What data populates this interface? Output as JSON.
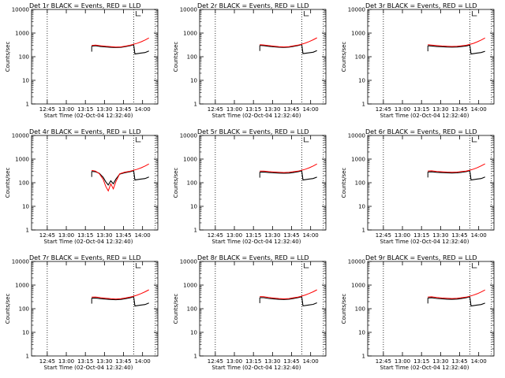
{
  "colors": {
    "events": "#000000",
    "lld": "#ff0000",
    "axes": "#000000",
    "background": "#ffffff"
  },
  "chart_data": [
    {
      "type": "line",
      "title": "Det 1r BLACK = Events, RED = LLD",
      "xlabel": "Start Time (02-Oct-04 12:32:40)",
      "ylabel": "Counts/sec",
      "yscale": "log",
      "ylim": [
        1,
        10000
      ],
      "xlim": [
        "12:32:40",
        "14:12:00"
      ],
      "xticks": [
        "12:45",
        "13:00",
        "13:15",
        "13:30",
        "13:45",
        "14:00"
      ],
      "yticks": [
        "1",
        "10",
        "100",
        "1000",
        "10000"
      ],
      "vlines": [
        "12:45",
        "13:53",
        "14:10"
      ],
      "bracket_label": "L",
      "series": [
        {
          "name": "Events",
          "color": "#000000",
          "x": [
            "13:20",
            "13:23",
            "13:27",
            "13:31",
            "13:35",
            "13:39",
            "13:43",
            "13:46",
            "13:50",
            "13:53",
            "13:54",
            "13:58",
            "14:02",
            "14:05"
          ],
          "values": [
            280,
            290,
            270,
            260,
            250,
            245,
            250,
            265,
            290,
            320,
            130,
            140,
            150,
            175
          ]
        },
        {
          "name": "LLD",
          "color": "#ff0000",
          "x": [
            "13:20",
            "13:23",
            "13:27",
            "13:31",
            "13:35",
            "13:39",
            "13:43",
            "13:46",
            "13:50",
            "13:53",
            "13:56",
            "13:59",
            "14:02",
            "14:05"
          ],
          "values": [
            300,
            310,
            290,
            275,
            265,
            255,
            262,
            278,
            305,
            335,
            375,
            430,
            510,
            620
          ]
        }
      ]
    },
    {
      "type": "line",
      "title": "Det 2r BLACK = Events, RED = LLD",
      "xlabel": "Start Time (02-Oct-04 12:32:40)",
      "ylabel": "Counts/sec",
      "yscale": "log",
      "ylim": [
        1,
        10000
      ],
      "xlim": [
        "12:32:40",
        "14:12:00"
      ],
      "xticks": [
        "12:45",
        "13:00",
        "13:15",
        "13:30",
        "13:45",
        "14:00"
      ],
      "yticks": [
        "1",
        "10",
        "100",
        "1000",
        "10000"
      ],
      "vlines": [
        "12:45",
        "13:53",
        "14:10"
      ],
      "bracket_label": "L",
      "series": [
        {
          "name": "Events",
          "color": "#000000",
          "x": [
            "13:20",
            "13:23",
            "13:27",
            "13:31",
            "13:35",
            "13:39",
            "13:43",
            "13:46",
            "13:50",
            "13:53",
            "13:54",
            "13:58",
            "14:02",
            "14:05"
          ],
          "values": [
            300,
            295,
            275,
            262,
            252,
            248,
            255,
            270,
            295,
            325,
            135,
            145,
            155,
            180
          ]
        },
        {
          "name": "LLD",
          "color": "#ff0000",
          "x": [
            "13:20",
            "13:23",
            "13:27",
            "13:31",
            "13:35",
            "13:39",
            "13:43",
            "13:46",
            "13:50",
            "13:53",
            "13:56",
            "13:59",
            "14:02",
            "14:05"
          ],
          "values": [
            320,
            315,
            295,
            280,
            268,
            260,
            268,
            285,
            310,
            340,
            380,
            440,
            520,
            630
          ]
        }
      ]
    },
    {
      "type": "line",
      "title": "Det 3r BLACK = Events, RED = LLD",
      "xlabel": "Start Time (02-Oct-04 12:32:40)",
      "ylabel": "Counts/sec",
      "yscale": "log",
      "ylim": [
        1,
        10000
      ],
      "xlim": [
        "12:32:40",
        "14:12:00"
      ],
      "xticks": [
        "12:45",
        "13:00",
        "13:15",
        "13:30",
        "13:45",
        "14:00"
      ],
      "yticks": [
        "1",
        "10",
        "100",
        "1000",
        "10000"
      ],
      "vlines": [
        "12:45",
        "13:53",
        "14:10"
      ],
      "bracket_label": "L",
      "series": [
        {
          "name": "Events",
          "color": "#000000",
          "x": [
            "13:20",
            "13:23",
            "13:27",
            "13:31",
            "13:35",
            "13:39",
            "13:43",
            "13:46",
            "13:50",
            "13:53",
            "13:54",
            "13:58",
            "14:02",
            "14:05"
          ],
          "values": [
            290,
            285,
            270,
            265,
            258,
            255,
            258,
            268,
            285,
            310,
            130,
            140,
            150,
            170
          ]
        },
        {
          "name": "LLD",
          "color": "#ff0000",
          "x": [
            "13:20",
            "13:23",
            "13:27",
            "13:31",
            "13:35",
            "13:39",
            "13:43",
            "13:46",
            "13:50",
            "13:53",
            "13:56",
            "13:59",
            "14:02",
            "14:05"
          ],
          "values": [
            320,
            310,
            295,
            285,
            278,
            272,
            276,
            288,
            305,
            330,
            370,
            430,
            510,
            620
          ]
        }
      ]
    },
    {
      "type": "line",
      "title": "Det 4r BLACK = Events, RED = LLD",
      "xlabel": "Start Time (02-Oct-04 12:32:40)",
      "ylabel": "Counts/sec",
      "yscale": "log",
      "ylim": [
        1,
        10000
      ],
      "xlim": [
        "12:32:40",
        "14:12:00"
      ],
      "xticks": [
        "12:45",
        "13:00",
        "13:15",
        "13:30",
        "13:45",
        "14:00"
      ],
      "yticks": [
        "1",
        "10",
        "100",
        "1000",
        "10000"
      ],
      "vlines": [
        "12:45",
        "13:53",
        "14:10"
      ],
      "bracket_label": "L",
      "series": [
        {
          "name": "Events",
          "color": "#000000",
          "x": [
            "13:20",
            "13:23",
            "13:26",
            "13:29",
            "13:31",
            "13:33",
            "13:35",
            "13:37",
            "13:39",
            "13:42",
            "13:46",
            "13:50",
            "13:53",
            "13:54",
            "13:58",
            "14:02",
            "14:05"
          ],
          "values": [
            300,
            290,
            250,
            170,
            110,
            80,
            120,
            90,
            140,
            230,
            265,
            290,
            320,
            130,
            140,
            150,
            175
          ]
        },
        {
          "name": "LLD",
          "color": "#ff0000",
          "x": [
            "13:20",
            "13:23",
            "13:26",
            "13:29",
            "13:31",
            "13:33",
            "13:35",
            "13:37",
            "13:39",
            "13:42",
            "13:46",
            "13:50",
            "13:53",
            "13:56",
            "13:59",
            "14:02",
            "14:05"
          ],
          "values": [
            330,
            310,
            240,
            140,
            70,
            45,
            90,
            55,
            110,
            240,
            280,
            305,
            335,
            375,
            430,
            510,
            620
          ]
        }
      ]
    },
    {
      "type": "line",
      "title": "Det 5r BLACK = Events, RED = LLD",
      "xlabel": "Start Time (02-Oct-04 12:32:40)",
      "ylabel": "Counts/sec",
      "yscale": "log",
      "ylim": [
        1,
        10000
      ],
      "xlim": [
        "12:32:40",
        "14:12:00"
      ],
      "xticks": [
        "12:45",
        "13:00",
        "13:15",
        "13:30",
        "13:45",
        "14:00"
      ],
      "yticks": [
        "1",
        "10",
        "100",
        "1000",
        "10000"
      ],
      "vlines": [
        "12:45",
        "13:53",
        "14:10"
      ],
      "bracket_label": "L",
      "series": [
        {
          "name": "Events",
          "color": "#000000",
          "x": [
            "13:20",
            "13:23",
            "13:27",
            "13:31",
            "13:35",
            "13:39",
            "13:43",
            "13:46",
            "13:50",
            "13:53",
            "13:54",
            "13:58",
            "14:02",
            "14:05"
          ],
          "values": [
            280,
            285,
            270,
            262,
            255,
            252,
            256,
            268,
            290,
            318,
            130,
            140,
            150,
            172
          ]
        },
        {
          "name": "LLD",
          "color": "#ff0000",
          "x": [
            "13:20",
            "13:23",
            "13:27",
            "13:31",
            "13:35",
            "13:39",
            "13:43",
            "13:46",
            "13:50",
            "13:53",
            "13:56",
            "13:59",
            "14:02",
            "14:05"
          ],
          "values": [
            310,
            312,
            295,
            285,
            275,
            270,
            275,
            290,
            310,
            335,
            375,
            430,
            510,
            620
          ]
        }
      ]
    },
    {
      "type": "line",
      "title": "Det 6r BLACK = Events, RED = LLD",
      "xlabel": "Start Time (02-Oct-04 12:32:40)",
      "ylabel": "Counts/sec",
      "yscale": "log",
      "ylim": [
        1,
        10000
      ],
      "xlim": [
        "12:32:40",
        "14:12:00"
      ],
      "xticks": [
        "12:45",
        "13:00",
        "13:15",
        "13:30",
        "13:45",
        "14:00"
      ],
      "yticks": [
        "1",
        "10",
        "100",
        "1000",
        "10000"
      ],
      "vlines": [
        "12:45",
        "13:53",
        "14:10"
      ],
      "bracket_label": "L",
      "series": [
        {
          "name": "Events",
          "color": "#000000",
          "x": [
            "13:20",
            "13:23",
            "13:27",
            "13:31",
            "13:35",
            "13:39",
            "13:43",
            "13:46",
            "13:50",
            "13:53",
            "13:54",
            "13:58",
            "14:02",
            "14:05"
          ],
          "values": [
            285,
            288,
            275,
            268,
            262,
            258,
            262,
            272,
            292,
            320,
            130,
            140,
            150,
            175
          ]
        },
        {
          "name": "LLD",
          "color": "#ff0000",
          "x": [
            "13:20",
            "13:23",
            "13:27",
            "13:31",
            "13:35",
            "13:39",
            "13:43",
            "13:46",
            "13:50",
            "13:53",
            "13:56",
            "13:59",
            "14:02",
            "14:05"
          ],
          "values": [
            315,
            318,
            300,
            290,
            282,
            278,
            282,
            295,
            312,
            338,
            378,
            435,
            515,
            625
          ]
        }
      ]
    },
    {
      "type": "line",
      "title": "Det 7r BLACK = Events, RED = LLD",
      "xlabel": "Start Time (02-Oct-04 12:32:40)",
      "ylabel": "Counts/sec",
      "yscale": "log",
      "ylim": [
        1,
        10000
      ],
      "xlim": [
        "12:32:40",
        "14:12:00"
      ],
      "xticks": [
        "12:45",
        "13:00",
        "13:15",
        "13:30",
        "13:45",
        "14:00"
      ],
      "yticks": [
        "1",
        "10",
        "100",
        "1000",
        "10000"
      ],
      "vlines": [
        "12:45",
        "13:53",
        "14:10"
      ],
      "bracket_label": "L",
      "series": [
        {
          "name": "Events",
          "color": "#000000",
          "x": [
            "13:20",
            "13:23",
            "13:27",
            "13:31",
            "13:35",
            "13:39",
            "13:43",
            "13:46",
            "13:50",
            "13:53",
            "13:54",
            "13:58",
            "14:02",
            "14:05"
          ],
          "values": [
            280,
            285,
            265,
            255,
            245,
            240,
            248,
            262,
            288,
            320,
            130,
            140,
            150,
            175
          ]
        },
        {
          "name": "LLD",
          "color": "#ff0000",
          "x": [
            "13:20",
            "13:23",
            "13:27",
            "13:31",
            "13:35",
            "13:39",
            "13:43",
            "13:46",
            "13:50",
            "13:53",
            "13:56",
            "13:59",
            "14:02",
            "14:05"
          ],
          "values": [
            310,
            315,
            292,
            278,
            266,
            258,
            266,
            282,
            308,
            340,
            380,
            440,
            520,
            630
          ]
        }
      ]
    },
    {
      "type": "line",
      "title": "Det 8r BLACK = Events, RED = LLD",
      "xlabel": "Start Time (02-Oct-04 12:32:40)",
      "ylabel": "Counts/sec",
      "yscale": "log",
      "ylim": [
        1,
        10000
      ],
      "xlim": [
        "12:32:40",
        "14:12:00"
      ],
      "xticks": [
        "12:45",
        "13:00",
        "13:15",
        "13:30",
        "13:45",
        "14:00"
      ],
      "yticks": [
        "1",
        "10",
        "100",
        "1000",
        "10000"
      ],
      "vlines": [
        "12:45",
        "13:53",
        "14:10"
      ],
      "bracket_label": "L",
      "series": [
        {
          "name": "Events",
          "color": "#000000",
          "x": [
            "13:20",
            "13:23",
            "13:27",
            "13:31",
            "13:35",
            "13:39",
            "13:43",
            "13:46",
            "13:50",
            "13:53",
            "13:54",
            "13:58",
            "14:02",
            "14:05"
          ],
          "values": [
            295,
            292,
            272,
            260,
            250,
            246,
            252,
            268,
            292,
            322,
            132,
            142,
            152,
            178
          ]
        },
        {
          "name": "LLD",
          "color": "#ff0000",
          "x": [
            "13:20",
            "13:23",
            "13:27",
            "13:31",
            "13:35",
            "13:39",
            "13:43",
            "13:46",
            "13:50",
            "13:53",
            "13:56",
            "13:59",
            "14:02",
            "14:05"
          ],
          "values": [
            325,
            320,
            298,
            282,
            270,
            262,
            270,
            286,
            312,
            342,
            382,
            442,
            522,
            632
          ]
        }
      ]
    },
    {
      "type": "line",
      "title": "Det 9r BLACK = Events, RED = LLD",
      "xlabel": "Start Time (02-Oct-04 12:32:40)",
      "ylabel": "Counts/sec",
      "yscale": "log",
      "ylim": [
        1,
        10000
      ],
      "xlim": [
        "12:32:40",
        "14:12:00"
      ],
      "xticks": [
        "12:45",
        "13:00",
        "13:15",
        "13:30",
        "13:45",
        "14:00"
      ],
      "yticks": [
        "1",
        "10",
        "100",
        "1000",
        "10000"
      ],
      "vlines": [
        "12:45",
        "13:53",
        "14:10"
      ],
      "bracket_label": "L",
      "series": [
        {
          "name": "Events",
          "color": "#000000",
          "x": [
            "13:20",
            "13:23",
            "13:27",
            "13:31",
            "13:35",
            "13:39",
            "13:43",
            "13:46",
            "13:50",
            "13:53",
            "13:54",
            "13:58",
            "14:02",
            "14:05"
          ],
          "values": [
            285,
            290,
            272,
            262,
            254,
            250,
            255,
            268,
            290,
            318,
            130,
            140,
            150,
            172
          ]
        },
        {
          "name": "LLD",
          "color": "#ff0000",
          "x": [
            "13:20",
            "13:23",
            "13:27",
            "13:31",
            "13:35",
            "13:39",
            "13:43",
            "13:46",
            "13:50",
            "13:53",
            "13:56",
            "13:59",
            "14:02",
            "14:05"
          ],
          "values": [
            315,
            318,
            298,
            285,
            275,
            270,
            275,
            290,
            310,
            336,
            376,
            432,
            512,
            622
          ]
        }
      ]
    }
  ]
}
